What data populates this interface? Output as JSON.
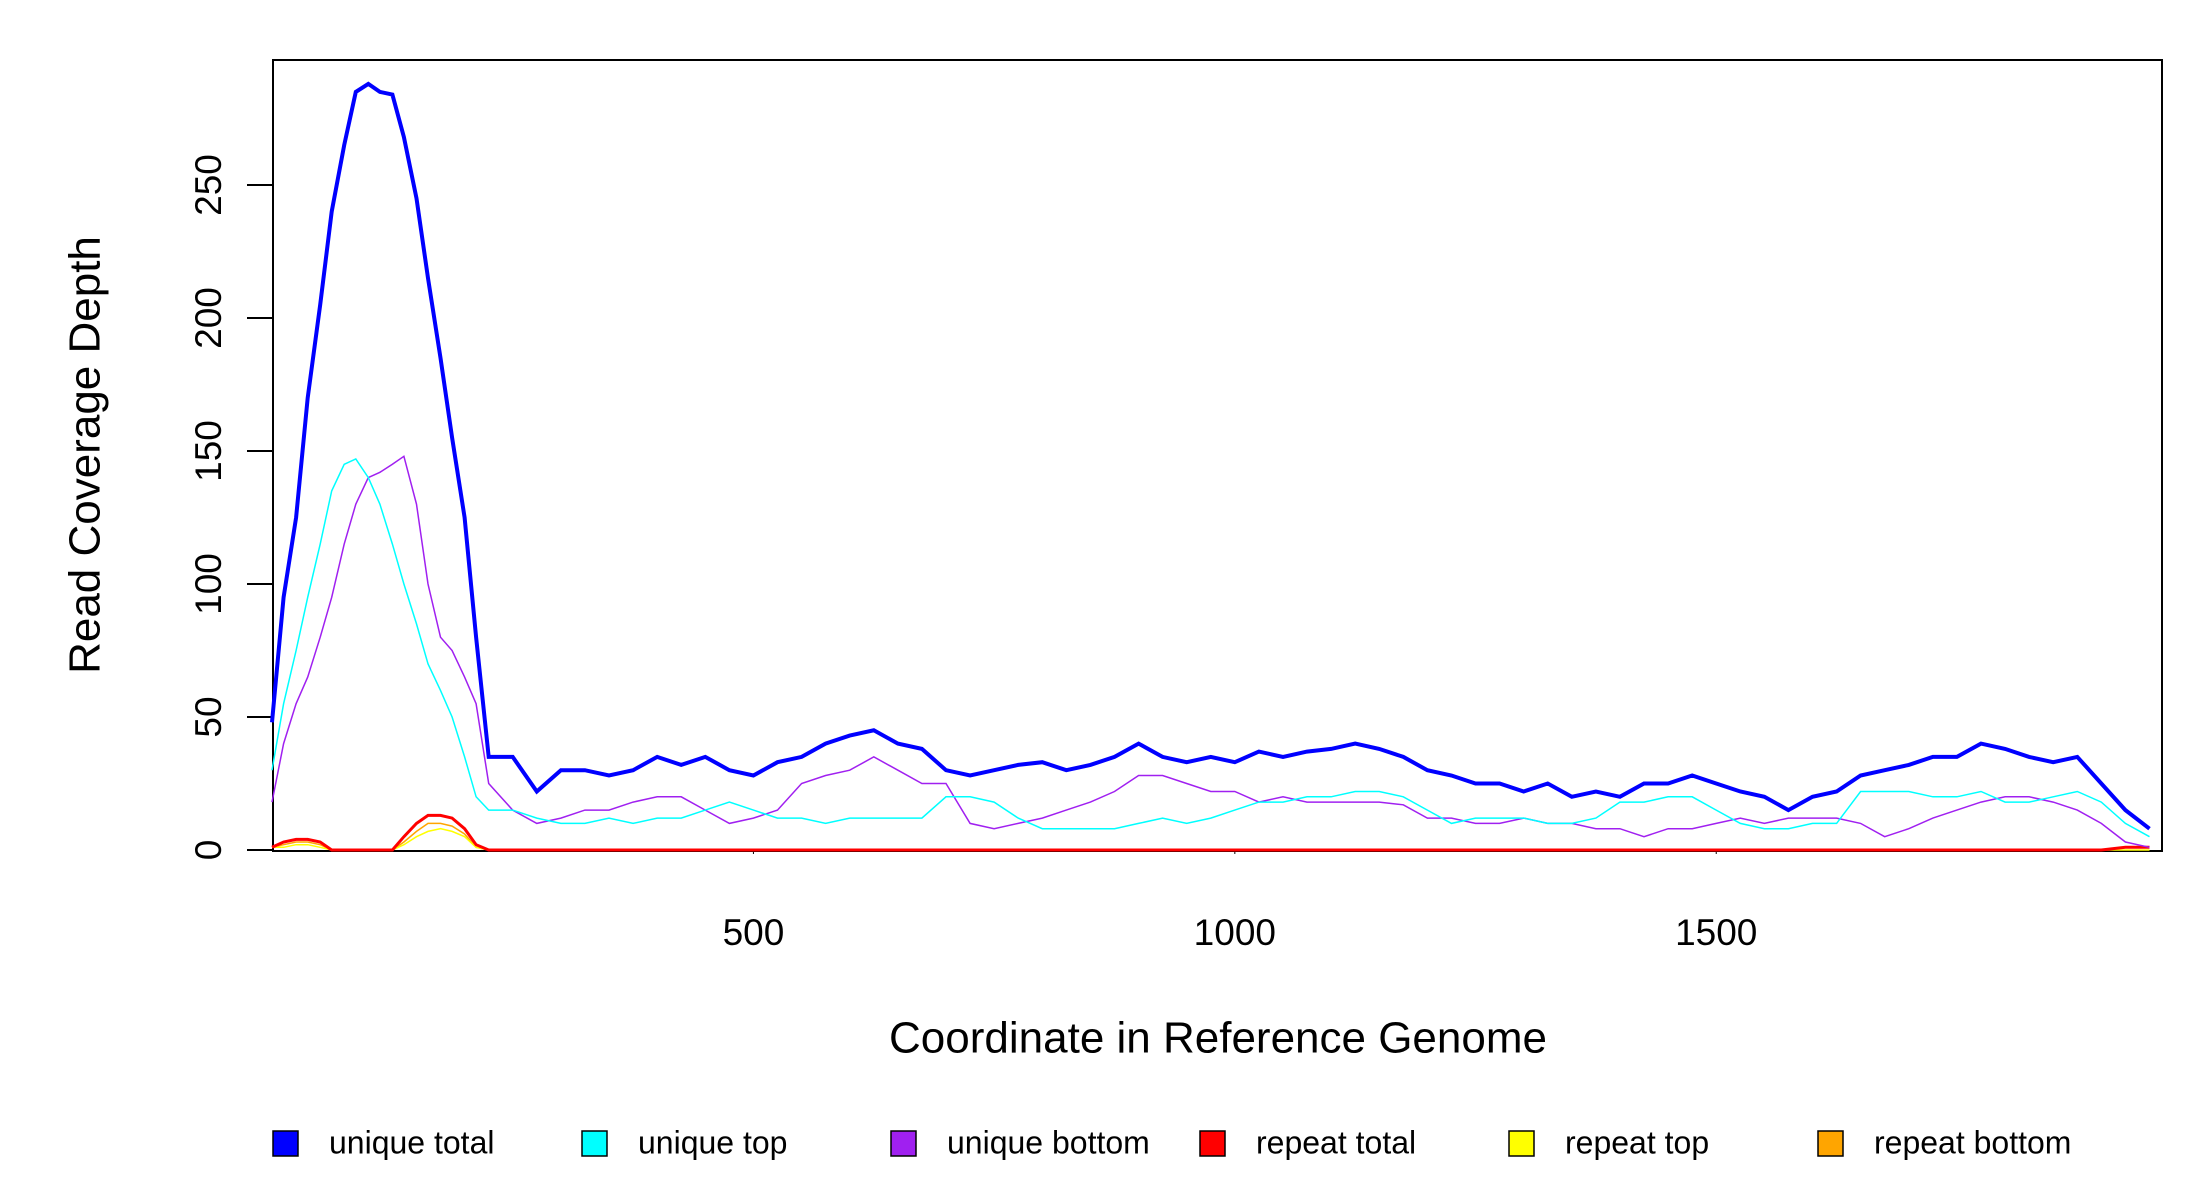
{
  "chart_data": {
    "type": "line",
    "x_label": "Coordinate in Reference Genome",
    "y_label": "Read Coverage Depth",
    "xlim": [
      1,
      1963
    ],
    "ylim": [
      0,
      297
    ],
    "xticks": [
      500,
      1000,
      1500
    ],
    "yticks": [
      0,
      50,
      100,
      150,
      200,
      250
    ],
    "x": [
      0,
      12,
      25,
      37,
      50,
      62,
      75,
      87,
      100,
      112,
      125,
      137,
      150,
      162,
      175,
      187,
      200,
      212,
      225,
      250,
      275,
      300,
      325,
      350,
      375,
      400,
      425,
      450,
      475,
      500,
      525,
      550,
      575,
      600,
      625,
      650,
      675,
      700,
      725,
      750,
      775,
      800,
      825,
      850,
      875,
      900,
      925,
      950,
      975,
      1000,
      1025,
      1050,
      1075,
      1100,
      1125,
      1150,
      1175,
      1200,
      1225,
      1250,
      1275,
      1300,
      1325,
      1350,
      1375,
      1400,
      1425,
      1450,
      1475,
      1500,
      1525,
      1550,
      1575,
      1600,
      1625,
      1650,
      1675,
      1700,
      1725,
      1750,
      1775,
      1800,
      1825,
      1850,
      1875,
      1900,
      1925,
      1950
    ],
    "series": [
      {
        "name": "unique total",
        "color": "#0000ff",
        "width": 4,
        "values": [
          48,
          95,
          125,
          170,
          205,
          240,
          265,
          285,
          288,
          285,
          284,
          268,
          245,
          215,
          185,
          155,
          125,
          80,
          35,
          35,
          22,
          30,
          30,
          28,
          30,
          35,
          32,
          35,
          30,
          28,
          33,
          35,
          40,
          43,
          45,
          40,
          38,
          30,
          28,
          30,
          32,
          33,
          30,
          32,
          35,
          40,
          35,
          33,
          35,
          33,
          37,
          35,
          37,
          38,
          40,
          38,
          35,
          30,
          28,
          25,
          25,
          22,
          25,
          20,
          22,
          20,
          25,
          25,
          28,
          25,
          22,
          20,
          15,
          20,
          22,
          28,
          30,
          32,
          35,
          35,
          40,
          38,
          35,
          33,
          35,
          25,
          15,
          8
        ]
      },
      {
        "name": "unique top",
        "color": "#00ffff",
        "width": 1.5,
        "values": [
          30,
          55,
          75,
          95,
          115,
          135,
          145,
          147,
          140,
          130,
          115,
          100,
          85,
          70,
          60,
          50,
          35,
          20,
          15,
          15,
          12,
          10,
          10,
          12,
          10,
          12,
          12,
          15,
          18,
          15,
          12,
          12,
          10,
          12,
          12,
          12,
          12,
          20,
          20,
          18,
          12,
          8,
          8,
          8,
          8,
          10,
          12,
          10,
          12,
          15,
          18,
          18,
          20,
          20,
          22,
          22,
          20,
          15,
          10,
          12,
          12,
          12,
          10,
          10,
          12,
          18,
          18,
          20,
          20,
          15,
          10,
          8,
          8,
          10,
          10,
          22,
          22,
          22,
          20,
          20,
          22,
          18,
          18,
          20,
          22,
          18,
          10,
          5
        ]
      },
      {
        "name": "unique bottom",
        "color": "#a020f0",
        "width": 1.5,
        "values": [
          18,
          40,
          55,
          65,
          80,
          95,
          115,
          130,
          140,
          142,
          145,
          148,
          130,
          100,
          80,
          75,
          65,
          55,
          25,
          15,
          10,
          12,
          15,
          15,
          18,
          20,
          20,
          15,
          10,
          12,
          15,
          25,
          28,
          30,
          35,
          30,
          25,
          25,
          10,
          8,
          10,
          12,
          15,
          18,
          22,
          28,
          28,
          25,
          22,
          22,
          18,
          20,
          18,
          18,
          18,
          18,
          17,
          12,
          12,
          10,
          10,
          12,
          10,
          10,
          8,
          8,
          5,
          8,
          8,
          10,
          12,
          10,
          12,
          12,
          12,
          10,
          5,
          8,
          12,
          15,
          18,
          20,
          20,
          18,
          15,
          10,
          3,
          1
        ]
      },
      {
        "name": "repeat total",
        "color": "#ff0000",
        "width": 3,
        "values": [
          1,
          3,
          4,
          4,
          3,
          0,
          0,
          0,
          0,
          0,
          0,
          5,
          10,
          13,
          13,
          12,
          8,
          2,
          0,
          0,
          0,
          0,
          0,
          0,
          0,
          0,
          0,
          0,
          0,
          0,
          0,
          0,
          0,
          0,
          0,
          0,
          0,
          0,
          0,
          0,
          0,
          0,
          0,
          0,
          0,
          0,
          0,
          0,
          0,
          0,
          0,
          0,
          0,
          0,
          0,
          0,
          0,
          0,
          0,
          0,
          0,
          0,
          0,
          0,
          0,
          0,
          0,
          0,
          0,
          0,
          0,
          0,
          0,
          0,
          0,
          0,
          0,
          0,
          0,
          0,
          0,
          0,
          0,
          0,
          0,
          0,
          1,
          1
        ]
      },
      {
        "name": "repeat top",
        "color": "#ffff00",
        "width": 1.5,
        "values": [
          1,
          1,
          2,
          2,
          1,
          0,
          0,
          0,
          0,
          0,
          0,
          2,
          5,
          7,
          8,
          7,
          5,
          1,
          0,
          0,
          0,
          0,
          0,
          0,
          0,
          0,
          0,
          0,
          0,
          0,
          0,
          0,
          0,
          0,
          0,
          0,
          0,
          0,
          0,
          0,
          0,
          0,
          0,
          0,
          0,
          0,
          0,
          0,
          0,
          0,
          0,
          0,
          0,
          0,
          0,
          0,
          0,
          0,
          0,
          0,
          0,
          0,
          0,
          0,
          0,
          0,
          0,
          0,
          0,
          0,
          0,
          0,
          0,
          0,
          0,
          0,
          0,
          0,
          0,
          0,
          0,
          0,
          0,
          0,
          0,
          0,
          0,
          0
        ]
      },
      {
        "name": "repeat bottom",
        "color": "#ffa500",
        "width": 1.5,
        "values": [
          1,
          2,
          3,
          3,
          2,
          0,
          0,
          0,
          0,
          0,
          0,
          3,
          7,
          10,
          10,
          9,
          6,
          1,
          0,
          0,
          0,
          0,
          0,
          0,
          0,
          0,
          0,
          0,
          0,
          0,
          0,
          0,
          0,
          0,
          0,
          0,
          0,
          0,
          0,
          0,
          0,
          0,
          0,
          0,
          0,
          0,
          0,
          0,
          0,
          0,
          0,
          0,
          0,
          0,
          0,
          0,
          0,
          0,
          0,
          0,
          0,
          0,
          0,
          0,
          0,
          0,
          0,
          0,
          0,
          0,
          0,
          0,
          0,
          0,
          0,
          0,
          0,
          0,
          0,
          0,
          0,
          0,
          0,
          0,
          0,
          0,
          1,
          1
        ]
      }
    ]
  }
}
